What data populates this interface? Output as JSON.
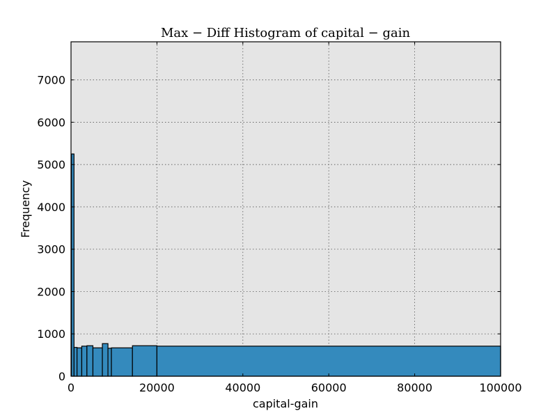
{
  "chart_data": {
    "type": "bar",
    "title": "Max − Diff Histogram of capital − gain",
    "xlabel": "capital-gain",
    "ylabel": "Frequency",
    "xlim": [
      0,
      100000
    ],
    "ylim": [
      0,
      7900
    ],
    "grid": true,
    "x_ticks": [
      0,
      20000,
      40000,
      60000,
      80000,
      100000
    ],
    "y_ticks": [
      0,
      1000,
      2000,
      3000,
      4000,
      5000,
      6000,
      7000
    ],
    "bar_color": "#348ABD",
    "bins": [
      {
        "start": 100,
        "end": 700,
        "count": 5250
      },
      {
        "start": 700,
        "end": 1400,
        "count": 680
      },
      {
        "start": 1400,
        "end": 2500,
        "count": 670
      },
      {
        "start": 2500,
        "end": 3700,
        "count": 710
      },
      {
        "start": 3700,
        "end": 5100,
        "count": 720
      },
      {
        "start": 5100,
        "end": 7300,
        "count": 670
      },
      {
        "start": 7300,
        "end": 8600,
        "count": 770
      },
      {
        "start": 8600,
        "end": 9400,
        "count": 660
      },
      {
        "start": 9400,
        "end": 14300,
        "count": 670
      },
      {
        "start": 14300,
        "end": 20000,
        "count": 720
      },
      {
        "start": 20000,
        "end": 99999,
        "count": 710
      }
    ]
  }
}
